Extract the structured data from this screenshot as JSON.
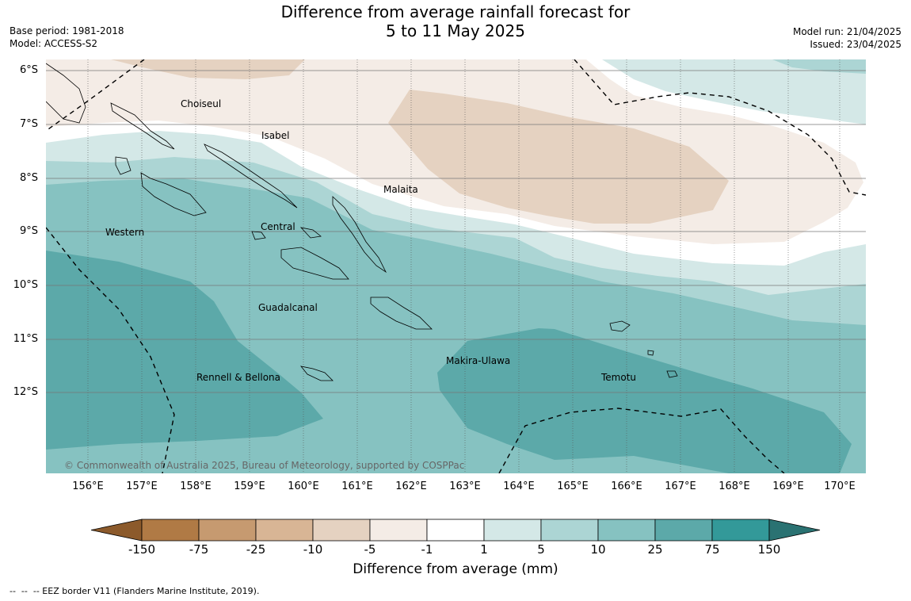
{
  "title": {
    "line1": "Difference from average rainfall forecast for",
    "line2": "5 to 11 May 2025"
  },
  "meta_left": {
    "base_period": "Base period: 1981-2018",
    "model": "Model: ACCESS-S2"
  },
  "meta_right": {
    "model_run": "Model run: 21/04/2025",
    "issued": "Issued: 23/04/2025"
  },
  "map": {
    "lat_labels": [
      "6°S",
      "7°S",
      "8°S",
      "9°S",
      "10°S",
      "11°S",
      "12°S"
    ],
    "lon_labels": [
      "156°E",
      "157°E",
      "158°E",
      "159°E",
      "160°E",
      "161°E",
      "162°E",
      "163°E",
      "164°E",
      "165°E",
      "166°E",
      "167°E",
      "168°E",
      "169°E",
      "170°E"
    ],
    "places": {
      "choiseul": "Choiseul",
      "isabel": "Isabel",
      "malaita": "Malaita",
      "western": "Western",
      "central": "Central",
      "guadalcanal": "Guadalcanal",
      "makira": "Makira-Ulawa",
      "rennell": "Rennell & Bellona",
      "temotu": "Temotu"
    },
    "copyright": "© Commonwealth of Australia 2025, Bureau of Meteorology, supported by COSPPac"
  },
  "colorbar": {
    "labels": [
      "-150",
      "-75",
      "-25",
      "-10",
      "-5",
      "-1",
      "1",
      "5",
      "10",
      "25",
      "75",
      "150"
    ],
    "colors": [
      "#8c5a2b",
      "#b07a45",
      "#c69a70",
      "#d8b595",
      "#e5d2c1",
      "#f4ece6",
      "#ffffff",
      "#d4e8e7",
      "#acd5d4",
      "#86c2c1",
      "#5ca9a9",
      "#339999",
      "#2a7272"
    ],
    "title": "Difference from average (mm)"
  },
  "legend": "--  --  -- EEZ border V11 (Flanders Marine Institute, 2019)."
}
